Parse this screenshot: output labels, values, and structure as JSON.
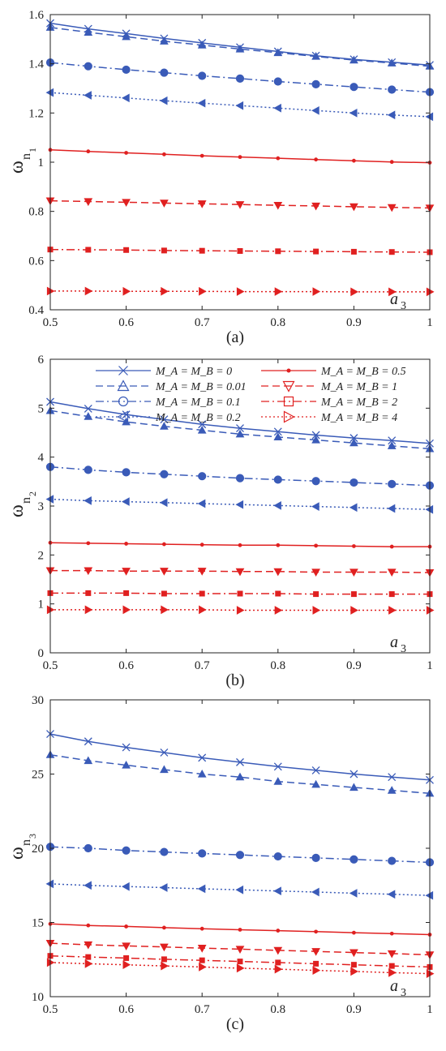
{
  "charts": [
    {
      "xlabel": "a",
      "xlabel_sub": "3",
      "ylabel": "ω",
      "ylabel_sub": "n",
      "ylabel_subsub": "1",
      "caption": "(a)",
      "xlim": [
        0.5,
        1
      ],
      "ylim": [
        0.4,
        1.6
      ],
      "xticks": [
        0.5,
        0.6,
        0.7,
        0.8,
        0.9,
        1
      ],
      "xtick_labels": [
        "0.5",
        "0.6",
        "0.7",
        "0.8",
        "0.9",
        "1"
      ],
      "yticks": [
        0.4,
        0.6,
        0.8,
        1,
        1.2,
        1.4,
        1.6
      ],
      "ytick_labels": [
        "0.4",
        "0.6",
        "0.8",
        "1",
        "1.2",
        "1.4",
        "1.6"
      ],
      "show_legend": false
    },
    {
      "xlabel": "a",
      "xlabel_sub": "3",
      "ylabel": "ω",
      "ylabel_sub": "n",
      "ylabel_subsub": "2",
      "caption": "(b)",
      "xlim": [
        0.5,
        1
      ],
      "ylim": [
        0,
        6
      ],
      "xticks": [
        0.5,
        0.6,
        0.7,
        0.8,
        0.9,
        1
      ],
      "xtick_labels": [
        "0.5",
        "0.6",
        "0.7",
        "0.8",
        "0.9",
        "1"
      ],
      "yticks": [
        0,
        1,
        2,
        3,
        4,
        5,
        6
      ],
      "ytick_labels": [
        "0",
        "1",
        "2",
        "3",
        "4",
        "5",
        "6"
      ],
      "show_legend": true
    },
    {
      "xlabel": "a",
      "xlabel_sub": "3",
      "ylabel": "ω",
      "ylabel_sub": "n",
      "ylabel_subsub": "3",
      "caption": "(c)",
      "xlim": [
        0.5,
        1
      ],
      "ylim": [
        10,
        30
      ],
      "xticks": [
        0.5,
        0.6,
        0.7,
        0.8,
        0.9,
        1
      ],
      "xtick_labels": [
        "0.5",
        "0.6",
        "0.7",
        "0.8",
        "0.9",
        "1"
      ],
      "yticks": [
        10,
        15,
        20,
        25,
        30
      ],
      "ytick_labels": [
        "10",
        "15",
        "20",
        "25",
        "30"
      ],
      "show_legend": false
    }
  ],
  "legend": [
    {
      "text": "M_A = M_B = 0"
    },
    {
      "text": "M_A = M_B = 0.01"
    },
    {
      "text": "M_A = M_B = 0.1"
    },
    {
      "text": "M_A = M_B = 0.2"
    },
    {
      "text": "M_A = M_B = 0.5"
    },
    {
      "text": "M_A = M_B = 1"
    },
    {
      "text": "M_A = M_B = 2"
    },
    {
      "text": "M_A = M_B = 4"
    }
  ],
  "chart_data": [
    {
      "type": "line",
      "x": [
        0.5,
        0.55,
        0.6,
        0.65,
        0.7,
        0.75,
        0.8,
        0.85,
        0.9,
        0.95,
        1.0
      ],
      "series": [
        {
          "name": "M_A = M_B = 0",
          "color": "#3a5bb8",
          "dash": "solid",
          "marker": "x",
          "values": [
            1.565,
            1.542,
            1.523,
            1.503,
            1.485,
            1.467,
            1.45,
            1.433,
            1.418,
            1.406,
            1.395
          ]
        },
        {
          "name": "M_A = M_B = 0.01",
          "color": "#3a5bb8",
          "dash": "dashed",
          "marker": "triangle-up",
          "values": [
            1.548,
            1.528,
            1.51,
            1.492,
            1.476,
            1.46,
            1.445,
            1.43,
            1.415,
            1.403,
            1.39
          ]
        },
        {
          "name": "M_A = M_B = 0.1",
          "color": "#3a5bb8",
          "dash": "dashdot",
          "marker": "circle",
          "values": [
            1.405,
            1.39,
            1.376,
            1.364,
            1.351,
            1.34,
            1.328,
            1.317,
            1.306,
            1.295,
            1.285
          ]
        },
        {
          "name": "M_A = M_B = 0.2",
          "color": "#3a5bb8",
          "dash": "dotted",
          "marker": "triangle-left",
          "values": [
            1.283,
            1.272,
            1.261,
            1.25,
            1.24,
            1.23,
            1.22,
            1.21,
            1.2,
            1.192,
            1.185
          ]
        },
        {
          "name": "M_A = M_B = 0.5",
          "color": "#e02020",
          "dash": "solid",
          "marker": "dot",
          "values": [
            1.05,
            1.044,
            1.038,
            1.032,
            1.026,
            1.021,
            1.016,
            1.011,
            1.006,
            1.001,
            0.998
          ]
        },
        {
          "name": "M_A = M_B = 1",
          "color": "#e02020",
          "dash": "dashed",
          "marker": "triangle-down",
          "values": [
            0.843,
            0.84,
            0.837,
            0.834,
            0.831,
            0.828,
            0.825,
            0.822,
            0.819,
            0.816,
            0.814
          ]
        },
        {
          "name": "M_A = M_B = 2",
          "color": "#e02020",
          "dash": "dashdot",
          "marker": "square",
          "values": [
            0.645,
            0.644,
            0.643,
            0.641,
            0.64,
            0.639,
            0.638,
            0.637,
            0.636,
            0.635,
            0.634
          ]
        },
        {
          "name": "M_A = M_B = 4",
          "color": "#e02020",
          "dash": "dotted",
          "marker": "triangle-right",
          "values": [
            0.476,
            0.476,
            0.475,
            0.475,
            0.475,
            0.474,
            0.474,
            0.474,
            0.473,
            0.473,
            0.473
          ]
        }
      ]
    },
    {
      "type": "line",
      "x": [
        0.5,
        0.55,
        0.6,
        0.65,
        0.7,
        0.75,
        0.8,
        0.85,
        0.9,
        0.95,
        1.0
      ],
      "series": [
        {
          "name": "M_A = M_B = 0",
          "color": "#3a5bb8",
          "dash": "solid",
          "marker": "x",
          "values": [
            5.13,
            4.99,
            4.87,
            4.77,
            4.67,
            4.59,
            4.52,
            4.45,
            4.39,
            4.34,
            4.28
          ]
        },
        {
          "name": "M_A = M_B = 0.01",
          "color": "#3a5bb8",
          "dash": "dashed",
          "marker": "triangle-up",
          "values": [
            4.95,
            4.83,
            4.72,
            4.63,
            4.55,
            4.47,
            4.41,
            4.35,
            4.29,
            4.23,
            4.17
          ]
        },
        {
          "name": "M_A = M_B = 0.1",
          "color": "#3a5bb8",
          "dash": "dashdot",
          "marker": "circle",
          "values": [
            3.8,
            3.74,
            3.69,
            3.65,
            3.61,
            3.57,
            3.54,
            3.51,
            3.48,
            3.45,
            3.42
          ]
        },
        {
          "name": "M_A = M_B = 0.2",
          "color": "#3a5bb8",
          "dash": "dotted",
          "marker": "triangle-left",
          "values": [
            3.14,
            3.11,
            3.09,
            3.07,
            3.05,
            3.03,
            3.01,
            2.99,
            2.97,
            2.95,
            2.93
          ]
        },
        {
          "name": "M_A = M_B = 0.5",
          "color": "#e02020",
          "dash": "solid",
          "marker": "dot",
          "values": [
            2.25,
            2.24,
            2.23,
            2.22,
            2.21,
            2.2,
            2.2,
            2.19,
            2.18,
            2.17,
            2.17
          ]
        },
        {
          "name": "M_A = M_B = 1",
          "color": "#e02020",
          "dash": "dashed",
          "marker": "triangle-down",
          "values": [
            1.68,
            1.68,
            1.67,
            1.67,
            1.67,
            1.66,
            1.66,
            1.65,
            1.65,
            1.65,
            1.64
          ]
        },
        {
          "name": "M_A = M_B = 2",
          "color": "#e02020",
          "dash": "dashdot",
          "marker": "square",
          "values": [
            1.22,
            1.22,
            1.22,
            1.21,
            1.21,
            1.21,
            1.21,
            1.2,
            1.2,
            1.2,
            1.2
          ]
        },
        {
          "name": "M_A = M_B = 4",
          "color": "#e02020",
          "dash": "dotted",
          "marker": "triangle-right",
          "values": [
            0.88,
            0.88,
            0.88,
            0.88,
            0.88,
            0.87,
            0.87,
            0.87,
            0.87,
            0.87,
            0.87
          ]
        }
      ]
    },
    {
      "type": "line",
      "x": [
        0.5,
        0.55,
        0.6,
        0.65,
        0.7,
        0.75,
        0.8,
        0.85,
        0.9,
        0.95,
        1.0
      ],
      "series": [
        {
          "name": "M_A = M_B = 0",
          "color": "#3a5bb8",
          "dash": "solid",
          "marker": "x",
          "values": [
            27.7,
            27.2,
            26.8,
            26.45,
            26.1,
            25.8,
            25.5,
            25.25,
            25.0,
            24.8,
            24.6
          ]
        },
        {
          "name": "M_A = M_B = 0.01",
          "color": "#3a5bb8",
          "dash": "dashed",
          "marker": "triangle-up",
          "values": [
            26.3,
            25.9,
            25.6,
            25.3,
            25.0,
            24.8,
            24.5,
            24.3,
            24.1,
            23.9,
            23.7
          ]
        },
        {
          "name": "M_A = M_B = 0.1",
          "color": "#3a5bb8",
          "dash": "dashdot",
          "marker": "circle",
          "values": [
            20.1,
            20.0,
            19.85,
            19.75,
            19.65,
            19.55,
            19.45,
            19.35,
            19.25,
            19.15,
            19.05
          ]
        },
        {
          "name": "M_A = M_B = 0.2",
          "color": "#3a5bb8",
          "dash": "dotted",
          "marker": "triangle-left",
          "values": [
            17.6,
            17.5,
            17.42,
            17.35,
            17.27,
            17.2,
            17.12,
            17.05,
            16.97,
            16.9,
            16.82
          ]
        },
        {
          "name": "M_A = M_B = 0.5",
          "color": "#e02020",
          "dash": "solid",
          "marker": "dot",
          "values": [
            14.9,
            14.8,
            14.73,
            14.65,
            14.58,
            14.51,
            14.45,
            14.38,
            14.31,
            14.25,
            14.18
          ]
        },
        {
          "name": "M_A = M_B = 1",
          "color": "#e02020",
          "dash": "dashed",
          "marker": "triangle-down",
          "values": [
            13.6,
            13.5,
            13.42,
            13.35,
            13.27,
            13.2,
            13.12,
            13.05,
            12.97,
            12.9,
            12.82
          ]
        },
        {
          "name": "M_A = M_B = 2",
          "color": "#e02020",
          "dash": "dashdot",
          "marker": "square",
          "values": [
            12.75,
            12.67,
            12.6,
            12.52,
            12.45,
            12.37,
            12.3,
            12.22,
            12.15,
            12.07,
            12.0
          ]
        },
        {
          "name": "M_A = M_B = 4",
          "color": "#e02020",
          "dash": "dotted",
          "marker": "triangle-right",
          "values": [
            12.3,
            12.22,
            12.15,
            12.07,
            12.0,
            11.92,
            11.85,
            11.77,
            11.7,
            11.62,
            11.55
          ]
        }
      ]
    }
  ]
}
